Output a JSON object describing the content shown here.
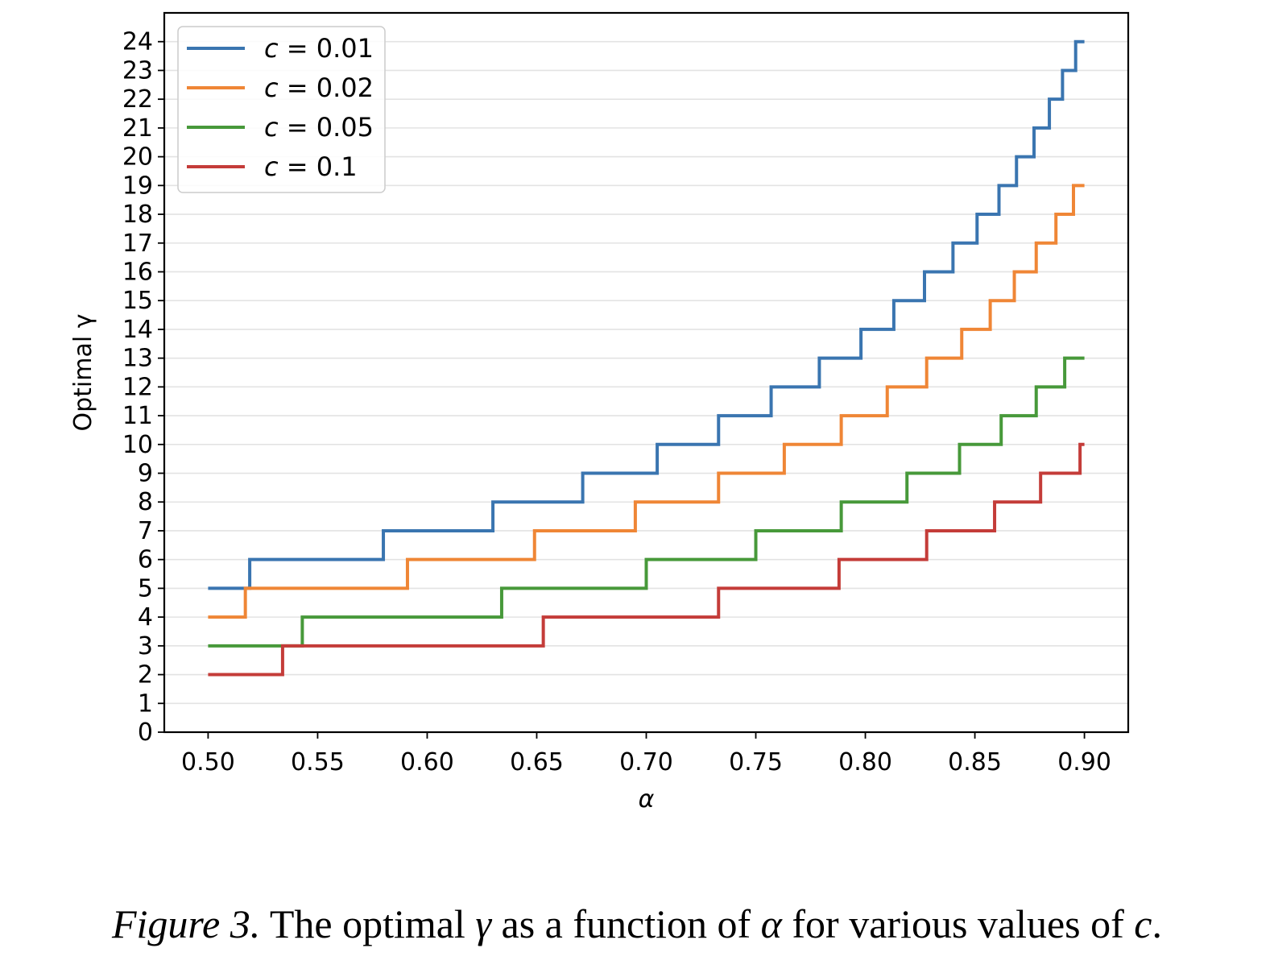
{
  "caption": {
    "label": "Figure 3.",
    "text_before_gamma": "The optimal ",
    "gamma": "γ",
    "text_mid": " as a function of ",
    "alpha": "α",
    "text_after": " for various values of ",
    "c": "c",
    "end": "."
  },
  "chart_data": {
    "type": "line",
    "step": "post",
    "xlabel": "α",
    "ylabel": "Optimal γ",
    "xlim": [
      0.48,
      0.92
    ],
    "ylim": [
      0,
      25
    ],
    "xticks": [
      0.5,
      0.55,
      0.6,
      0.65,
      0.7,
      0.75,
      0.8,
      0.85,
      0.9
    ],
    "xtick_labels": [
      "0.50",
      "0.55",
      "0.60",
      "0.65",
      "0.70",
      "0.75",
      "0.80",
      "0.85",
      "0.90"
    ],
    "yticks": [
      0,
      1,
      2,
      3,
      4,
      5,
      6,
      7,
      8,
      9,
      10,
      11,
      12,
      13,
      14,
      15,
      16,
      17,
      18,
      19,
      20,
      21,
      22,
      23,
      24
    ],
    "ytick_labels": [
      "0",
      "1",
      "2",
      "3",
      "4",
      "5",
      "6",
      "7",
      "8",
      "9",
      "10",
      "11",
      "12",
      "13",
      "14",
      "15",
      "16",
      "17",
      "18",
      "19",
      "20",
      "21",
      "22",
      "23",
      "24"
    ],
    "grid": "horizontal",
    "legend_position": "top-left",
    "series": [
      {
        "name": "c = 0.01",
        "label_var": "c",
        "label_val": "= 0.01",
        "color": "#3a75b0",
        "x": [
          0.5,
          0.519,
          0.58,
          0.63,
          0.671,
          0.705,
          0.733,
          0.757,
          0.779,
          0.798,
          0.813,
          0.827,
          0.84,
          0.851,
          0.861,
          0.869,
          0.877,
          0.884,
          0.89,
          0.896,
          0.9
        ],
        "y": [
          5,
          6,
          7,
          8,
          9,
          10,
          11,
          12,
          13,
          14,
          15,
          16,
          17,
          18,
          19,
          20,
          21,
          22,
          23,
          24,
          24
        ]
      },
      {
        "name": "c = 0.02",
        "label_var": "c",
        "label_val": "= 0.02",
        "color": "#ef8636",
        "x": [
          0.5,
          0.517,
          0.591,
          0.649,
          0.695,
          0.733,
          0.763,
          0.789,
          0.81,
          0.828,
          0.844,
          0.857,
          0.868,
          0.878,
          0.887,
          0.895,
          0.9
        ],
        "y": [
          4,
          5,
          6,
          7,
          8,
          9,
          10,
          11,
          12,
          13,
          14,
          15,
          16,
          17,
          18,
          19,
          19
        ]
      },
      {
        "name": "c = 0.05",
        "label_var": "c",
        "label_val": "= 0.05",
        "color": "#47993a",
        "x": [
          0.5,
          0.543,
          0.634,
          0.7,
          0.75,
          0.789,
          0.819,
          0.843,
          0.862,
          0.878,
          0.891,
          0.9
        ],
        "y": [
          3,
          4,
          5,
          6,
          7,
          8,
          9,
          10,
          11,
          12,
          13,
          13
        ]
      },
      {
        "name": "c = 0.1",
        "label_var": "c",
        "label_val": "= 0.1",
        "color": "#c43c39",
        "x": [
          0.5,
          0.534,
          0.653,
          0.733,
          0.788,
          0.828,
          0.859,
          0.88,
          0.898,
          0.9
        ],
        "y": [
          2,
          3,
          4,
          5,
          6,
          7,
          8,
          9,
          10,
          10
        ]
      }
    ]
  }
}
